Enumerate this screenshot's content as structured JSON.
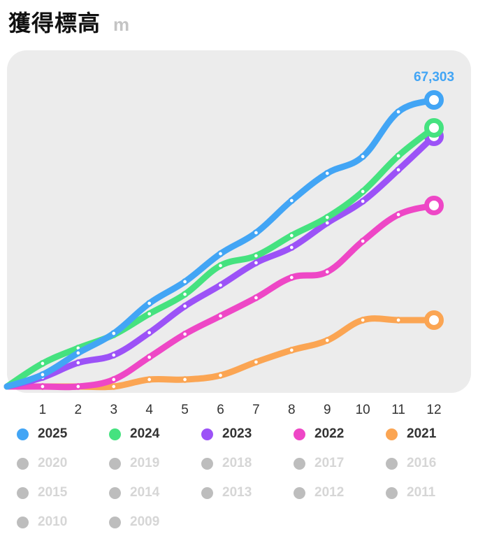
{
  "header": {
    "title": "獲得標高",
    "unit": "m"
  },
  "chart_data": {
    "type": "line",
    "title": "獲得標高",
    "ylabel": "m",
    "xlabel": "",
    "x": [
      1,
      2,
      3,
      4,
      5,
      6,
      7,
      8,
      9,
      10,
      11,
      12
    ],
    "xlim": [
      0,
      12
    ],
    "ylim": [
      0,
      67303
    ],
    "grid": false,
    "end_label": {
      "series": "2025",
      "text": "67,303"
    },
    "series": [
      {
        "name": "2025",
        "color": "#42a5f5",
        "active": true,
        "values": [
          2790,
          7880,
          12480,
          19540,
          24620,
          31190,
          36120,
          43670,
          50070,
          54010,
          64520,
          67303
        ]
      },
      {
        "name": "2024",
        "color": "#45e27f",
        "active": true,
        "values": [
          5420,
          9030,
          12150,
          17080,
          21670,
          28400,
          30700,
          35460,
          39730,
          45800,
          54180,
          60740
        ]
      },
      {
        "name": "2023",
        "color": "#9c52f7",
        "active": true,
        "values": [
          2130,
          5580,
          7390,
          12640,
          18880,
          23800,
          29060,
          32670,
          38420,
          43510,
          50900,
          58770
        ]
      },
      {
        "name": "2022",
        "color": "#ee47c6",
        "active": true,
        "values": [
          0,
          0,
          1640,
          6890,
          12310,
          16580,
          20850,
          25610,
          26920,
          34150,
          40380,
          42520
        ]
      },
      {
        "name": "2021",
        "color": "#fba553",
        "active": true,
        "values": [
          0,
          0,
          0,
          1640,
          1640,
          2630,
          5750,
          8540,
          10830,
          15600,
          15600,
          15600
        ]
      }
    ]
  },
  "legend": [
    {
      "label": "2025",
      "color": "#42a5f5",
      "active": true
    },
    {
      "label": "2024",
      "color": "#45e27f",
      "active": true
    },
    {
      "label": "2023",
      "color": "#9c52f7",
      "active": true
    },
    {
      "label": "2022",
      "color": "#ee47c6",
      "active": true
    },
    {
      "label": "2021",
      "color": "#fba553",
      "active": true
    },
    {
      "label": "2020",
      "color": "#bdbdbd",
      "active": false
    },
    {
      "label": "2019",
      "color": "#bdbdbd",
      "active": false
    },
    {
      "label": "2018",
      "color": "#bdbdbd",
      "active": false
    },
    {
      "label": "2017",
      "color": "#bdbdbd",
      "active": false
    },
    {
      "label": "2016",
      "color": "#bdbdbd",
      "active": false
    },
    {
      "label": "2015",
      "color": "#bdbdbd",
      "active": false
    },
    {
      "label": "2014",
      "color": "#bdbdbd",
      "active": false
    },
    {
      "label": "2013",
      "color": "#bdbdbd",
      "active": false
    },
    {
      "label": "2012",
      "color": "#bdbdbd",
      "active": false
    },
    {
      "label": "2011",
      "color": "#bdbdbd",
      "active": false
    },
    {
      "label": "2010",
      "color": "#bdbdbd",
      "active": false
    },
    {
      "label": "2009",
      "color": "#bdbdbd",
      "active": false
    }
  ],
  "colors": {
    "active_text": "#333333",
    "inactive_text": "#d6d6d6",
    "plot_bg": "#ececec"
  }
}
